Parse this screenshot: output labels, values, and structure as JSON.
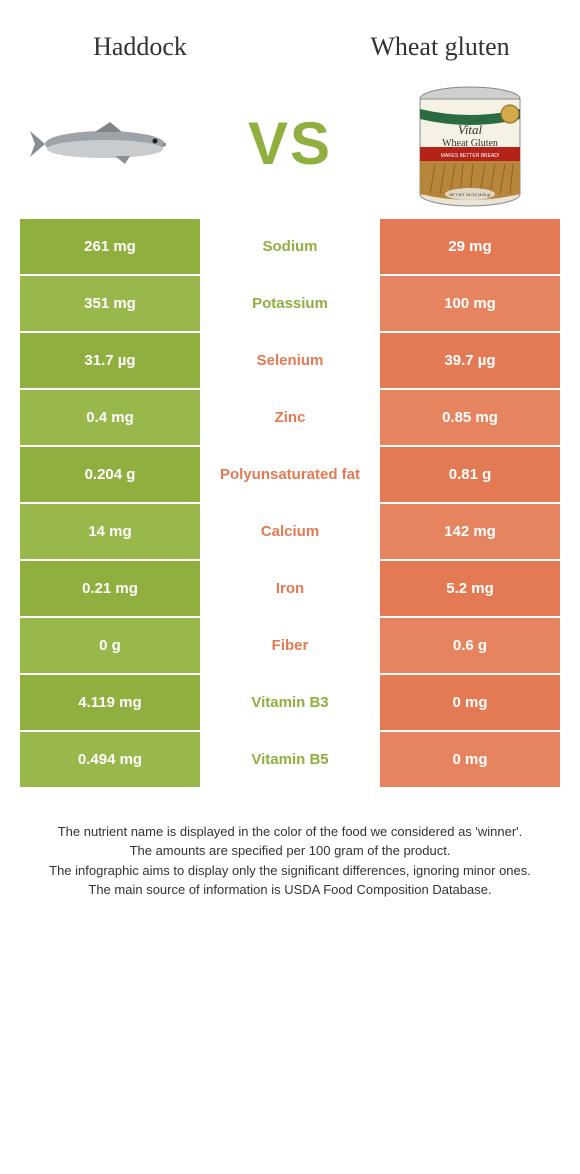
{
  "left_food": "Haddock",
  "right_food": "Wheat gluten",
  "vs": "VS",
  "left_color": "#8fb03e",
  "left_color_alt": "#99b84c",
  "right_color": "#e37a53",
  "right_color_alt": "#e6845f",
  "can_label_line1": "Vital",
  "can_label_line2": "Wheat Gluten",
  "rows": [
    {
      "left": "261 mg",
      "mid": "Sodium",
      "right": "29 mg",
      "winner": "left"
    },
    {
      "left": "351 mg",
      "mid": "Potassium",
      "right": "100 mg",
      "winner": "left"
    },
    {
      "left": "31.7 µg",
      "mid": "Selenium",
      "right": "39.7 µg",
      "winner": "right"
    },
    {
      "left": "0.4 mg",
      "mid": "Zinc",
      "right": "0.85 mg",
      "winner": "right"
    },
    {
      "left": "0.204 g",
      "mid": "Polyunsaturated fat",
      "right": "0.81 g",
      "winner": "right"
    },
    {
      "left": "14 mg",
      "mid": "Calcium",
      "right": "142 mg",
      "winner": "right"
    },
    {
      "left": "0.21 mg",
      "mid": "Iron",
      "right": "5.2 mg",
      "winner": "right"
    },
    {
      "left": "0 g",
      "mid": "Fiber",
      "right": "0.6 g",
      "winner": "right"
    },
    {
      "left": "4.119 mg",
      "mid": "Vitamin B3",
      "right": "0 mg",
      "winner": "left"
    },
    {
      "left": "0.494 mg",
      "mid": "Vitamin B5",
      "right": "0 mg",
      "winner": "left"
    }
  ],
  "footnote_lines": [
    "The nutrient name is displayed in the color of the food we considered as 'winner'.",
    "The amounts are specified per 100 gram of the product.",
    "The infographic aims to display only the significant differences, ignoring minor ones.",
    "The main source of information is USDA Food Composition Database."
  ]
}
